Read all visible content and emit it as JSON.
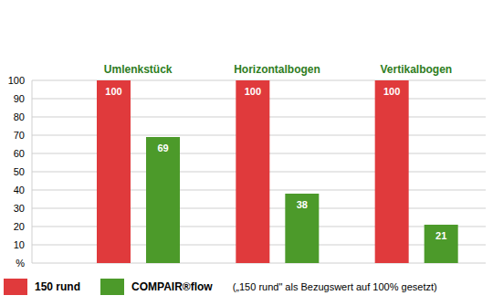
{
  "chart_data": {
    "type": "bar",
    "categories": [
      "Umlenkstück",
      "Horizontalbogen",
      "Vertikalbogen"
    ],
    "series": [
      {
        "name": "150 rund",
        "color": "#e03a3c",
        "values": [
          100,
          100,
          100
        ]
      },
      {
        "name": "COMPAIR®flow",
        "color": "#4c9a2a",
        "values": [
          69,
          38,
          21
        ]
      }
    ],
    "ylim": [
      0,
      100
    ],
    "yticks": [
      {
        "value": 0,
        "label": "%"
      },
      10,
      20,
      30,
      40,
      50,
      60,
      70,
      80,
      90,
      100
    ],
    "grid": true,
    "data_labels": true,
    "legend": "bottom",
    "annotations": [
      "(„150 rund\" als Bezugswert auf 100% gesetzt)"
    ]
  }
}
